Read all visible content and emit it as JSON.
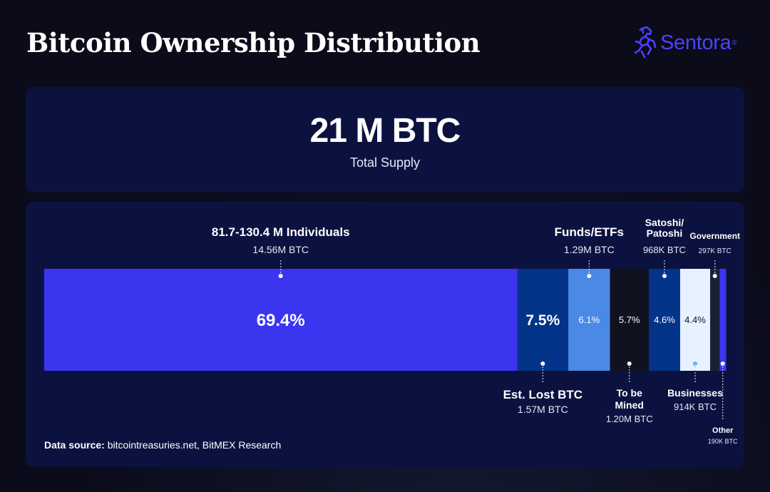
{
  "header": {
    "title": "Bitcoin Ownership Distribution",
    "brand": "Sentora",
    "brand_mark": "®",
    "brand_icon": "horse-logo-icon",
    "brand_color": "#4b43ff"
  },
  "supply": {
    "value": "21 M BTC",
    "label": "Total Supply"
  },
  "source": {
    "label": "Data source:",
    "text": " bitcointreasuries.net, BitMEX Research"
  },
  "chart_data": {
    "type": "bar",
    "orientation": "horizontal-stacked",
    "segments": [
      {
        "key": "individuals",
        "percent": 69.4,
        "percent_label": "69.4%",
        "name_lines": [
          "81.7-130.4 M Individuals"
        ],
        "amount": "14.56M BTC",
        "label_side": "top",
        "color": "#3c35f0",
        "text_color": "#ffffff"
      },
      {
        "key": "lost",
        "percent": 7.5,
        "percent_label": "7.5%",
        "name_lines": [
          "Est. Lost BTC"
        ],
        "amount": "1.57M BTC",
        "label_side": "bottom",
        "color": "#04338a",
        "text_color": "#ffffff"
      },
      {
        "key": "funds",
        "percent": 6.1,
        "percent_label": "6.1%",
        "name_lines": [
          "Funds/ETFs"
        ],
        "amount": "1.29M BTC",
        "label_side": "top",
        "color": "#4a8ae6",
        "text_color": "#ffffff"
      },
      {
        "key": "mined",
        "percent": 5.7,
        "percent_label": "5.7%",
        "name_lines": [
          "To be",
          "Mined"
        ],
        "amount": "1.20M BTC",
        "label_side": "bottom",
        "color": "#10131f",
        "text_color": "#ffffff"
      },
      {
        "key": "satoshi",
        "percent": 4.6,
        "percent_label": "4.6%",
        "name_lines": [
          "Satoshi/",
          "Patoshi"
        ],
        "amount": "968K BTC",
        "label_side": "top",
        "color": "#04338a",
        "text_color": "#ffffff"
      },
      {
        "key": "businesses",
        "percent": 4.4,
        "percent_label": "4.4%",
        "name_lines": [
          "Businesses"
        ],
        "amount": "914K BTC",
        "label_side": "bottom",
        "color": "#e6f2ff",
        "text_color": "#0b1030"
      },
      {
        "key": "government",
        "percent": 1.4,
        "percent_label": "",
        "name_lines": [
          "Government"
        ],
        "amount": "297K BTC",
        "label_side": "top",
        "color": "#1a2137",
        "text_color": "#ffffff"
      },
      {
        "key": "other",
        "percent": 0.9,
        "percent_label": "",
        "name_lines": [
          "Other"
        ],
        "amount": "190K BTC",
        "label_side": "bottom",
        "color": "#3c35f0",
        "text_color": "#ffffff"
      }
    ]
  }
}
